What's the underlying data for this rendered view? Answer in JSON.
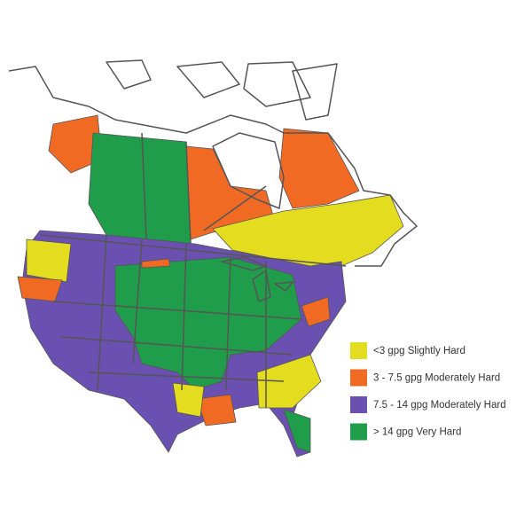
{
  "legend": {
    "items": [
      {
        "label": "<3 gpg Slightly Hard",
        "color": "#e4dc1f"
      },
      {
        "label": "3 - 7.5 gpg Moderately Hard",
        "color": "#f06a24"
      },
      {
        "label": "7.5 - 14 gpg Moderately Hard",
        "color": "#6a50b0"
      },
      {
        "label": "> 14 gpg Very Hard",
        "color": "#1f9d4a"
      }
    ]
  }
}
